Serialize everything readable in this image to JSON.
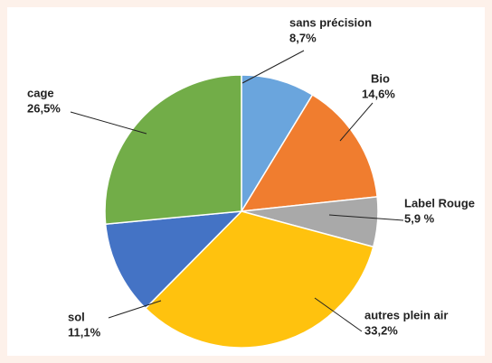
{
  "chart_data": {
    "type": "pie",
    "categories": [
      "sans précision",
      "Bio",
      "Label Rouge",
      "autres plein air",
      "sol",
      "cage"
    ],
    "values": [
      8.7,
      14.6,
      5.9,
      33.2,
      11.1,
      26.5
    ],
    "value_labels": [
      "8,7%",
      "14,6%",
      "5,9 %",
      "33,2%",
      "11,1%",
      "26,5%"
    ],
    "colors": [
      "#6aa5dd",
      "#f07d2f",
      "#a9a9a9",
      "#ffc20e",
      "#4473c5",
      "#72ad48"
    ]
  }
}
